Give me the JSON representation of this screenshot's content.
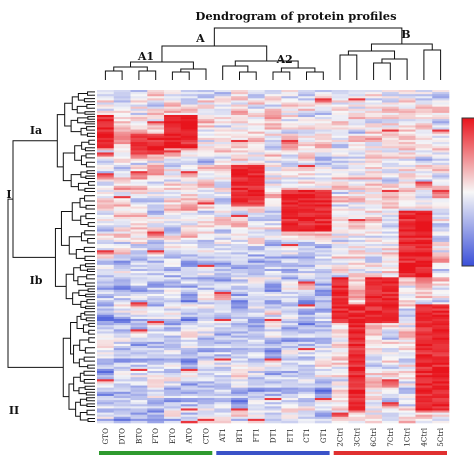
{
  "chart_data": {
    "type": "heatmap",
    "title": "Dendrogram of protein profiles",
    "columns": [
      "GTO",
      "DTO",
      "BTO",
      "FTO",
      "ETO",
      "ATO",
      "CTO",
      "AT1",
      "BT1",
      "FT1",
      "DT1",
      "ET1",
      "CT1",
      "GT1",
      "2Ctrl",
      "3Ctrl",
      "6Ctrl",
      "7Ctrl",
      "1Ctrl",
      "4Ctrl",
      "5Ctrl"
    ],
    "column_groups": [
      {
        "name": "A1",
        "parent": "A",
        "members": [
          "GTO",
          "DTO",
          "BTO",
          "FTO",
          "ETO",
          "ATO",
          "CTO"
        ],
        "bar_color": "#2e9a2e"
      },
      {
        "name": "A2",
        "parent": "A",
        "members": [
          "AT1",
          "BT1",
          "FT1",
          "DT1",
          "ET1",
          "CT1",
          "GT1"
        ],
        "bar_color": "#3a52c8"
      },
      {
        "name": "B",
        "members": [
          "2Ctrl",
          "3Ctrl",
          "6Ctrl",
          "7Ctrl",
          "1Ctrl",
          "4Ctrl",
          "5Ctrl"
        ],
        "bar_color": "#e03030"
      }
    ],
    "top_cluster_labels": [
      "A",
      "A1",
      "A2",
      "B"
    ],
    "row_cluster_labels": [
      "I",
      "Ia",
      "Ib",
      "II"
    ],
    "row_count": 160,
    "color_scale": {
      "low": "#3a4fd8",
      "mid": "#f7f7f7",
      "high": "#e8141c"
    },
    "legend_placement": "right",
    "high_blocks": [
      {
        "rows": [
          0.07,
          0.17
        ],
        "columns": [
          "GTO",
          "ETO",
          "ATO"
        ]
      },
      {
        "rows": [
          0.13,
          0.19
        ],
        "columns": [
          "FTO",
          "BTO"
        ]
      },
      {
        "rows": [
          0.22,
          0.34
        ],
        "columns": [
          "BT1",
          "FT1"
        ]
      },
      {
        "rows": [
          0.3,
          0.42
        ],
        "columns": [
          "ET1",
          "CT1",
          "GT1"
        ]
      },
      {
        "rows": [
          0.36,
          0.56
        ],
        "columns": [
          "1Ctrl",
          "4Ctrl"
        ]
      },
      {
        "rows": [
          0.56,
          0.7
        ],
        "columns": [
          "2Ctrl",
          "6Ctrl",
          "7Ctrl"
        ]
      },
      {
        "rows": [
          0.64,
          0.96
        ],
        "columns": [
          "3Ctrl",
          "5Ctrl",
          "4Ctrl"
        ]
      }
    ]
  }
}
